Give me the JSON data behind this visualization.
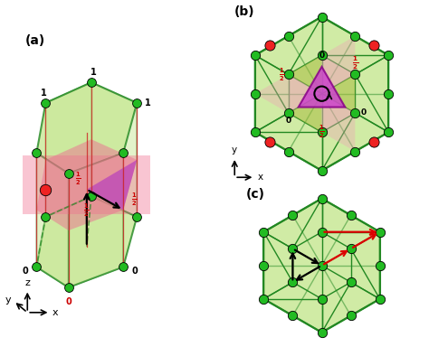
{
  "fig_width": 4.74,
  "fig_height": 3.84,
  "bg_color": "#ffffff",
  "green_node": "#22bb22",
  "red_node": "#ee2222",
  "edge_color": "#228822",
  "light_green": "#c8e896",
  "pink_color": "#f08098",
  "purple_color": "#cc44cc",
  "olive_color": "#888820",
  "panel_labels": [
    "(a)",
    "(b)",
    "(c)"
  ],
  "label_fontsize": 10
}
